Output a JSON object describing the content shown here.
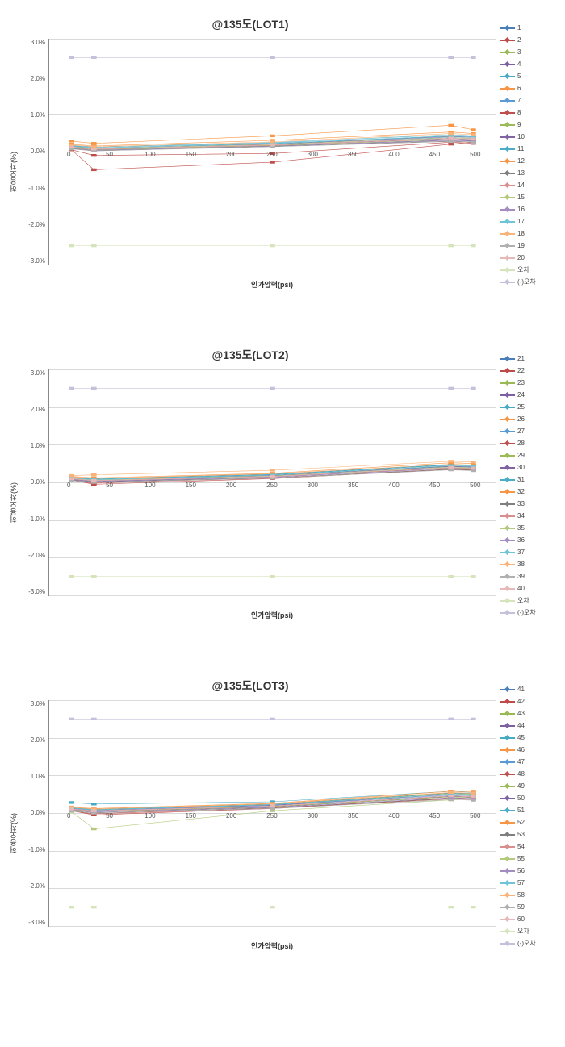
{
  "background_color": "#ffffff",
  "grid_color": "#d9d9d9",
  "axis_color": "#888888",
  "text_color": "#333333",
  "font_family": "Arial",
  "title_fontsize": 14,
  "label_fontsize": 9,
  "tick_fontsize": 8,
  "legend_fontsize": 8,
  "charts": [
    {
      "title": "@135도(LOT1)",
      "ylabel": "허용오차(%)",
      "xlabel": "인가압력(psi)",
      "ylim": [
        -3.0,
        3.0
      ],
      "ytick_step": 1.0,
      "yticks": [
        "3.0%",
        "2.0%",
        "1.0%",
        "0.0%",
        "-1.0%",
        "-2.0%",
        "-3.0%"
      ],
      "xlim": [
        0,
        500
      ],
      "xtick_step": 50,
      "xticks": [
        "0",
        "50",
        "100",
        "150",
        "200",
        "250",
        "300",
        "350",
        "400",
        "450",
        "500"
      ],
      "x_values": [
        25,
        50,
        250,
        450,
        475
      ],
      "series": [
        {
          "label": "1",
          "color": "#4a7ebb",
          "marker": "diamond",
          "values": [
            0.1,
            0.05,
            0.18,
            0.35,
            0.32
          ]
        },
        {
          "label": "2",
          "color": "#be4b48",
          "marker": "square",
          "values": [
            0.05,
            -0.1,
            -0.05,
            0.25,
            0.22
          ]
        },
        {
          "label": "3",
          "color": "#98b954",
          "marker": "triangle",
          "values": [
            0.12,
            0.08,
            0.2,
            0.4,
            0.38
          ]
        },
        {
          "label": "4",
          "color": "#7d60a0",
          "marker": "x",
          "values": [
            0.08,
            0.02,
            0.15,
            0.3,
            0.28
          ]
        },
        {
          "label": "5",
          "color": "#46aac5",
          "marker": "star",
          "values": [
            0.15,
            0.1,
            0.22,
            0.42,
            0.4
          ]
        },
        {
          "label": "6",
          "color": "#f79646",
          "marker": "circle",
          "values": [
            0.28,
            0.22,
            0.42,
            0.7,
            0.58
          ]
        },
        {
          "label": "7",
          "color": "#5a9bd4",
          "marker": "plus",
          "values": [
            0.12,
            0.06,
            0.18,
            0.38,
            0.35
          ]
        },
        {
          "label": "8",
          "color": "#c0504d",
          "marker": "dash",
          "values": [
            0.05,
            -0.48,
            -0.28,
            0.2,
            0.25
          ]
        },
        {
          "label": "9",
          "color": "#9bbb59",
          "marker": "dash",
          "values": [
            0.1,
            0.05,
            0.16,
            0.32,
            0.3
          ]
        },
        {
          "label": "10",
          "color": "#8064a2",
          "marker": "diamond",
          "values": [
            0.14,
            0.08,
            0.2,
            0.4,
            0.38
          ]
        },
        {
          "label": "11",
          "color": "#4bacc6",
          "marker": "square",
          "values": [
            0.16,
            0.12,
            0.24,
            0.45,
            0.42
          ]
        },
        {
          "label": "12",
          "color": "#f79646",
          "marker": "triangle",
          "values": [
            0.2,
            0.15,
            0.3,
            0.52,
            0.48
          ]
        },
        {
          "label": "13",
          "color": "#7f7f7f",
          "marker": "dash",
          "values": [
            0.08,
            0.03,
            0.14,
            0.28,
            0.26
          ]
        },
        {
          "label": "14",
          "color": "#d98d8c",
          "marker": "dash",
          "values": [
            0.11,
            0.06,
            0.17,
            0.34,
            0.32
          ]
        },
        {
          "label": "15",
          "color": "#b3ca7e",
          "marker": "dash",
          "values": [
            0.13,
            0.08,
            0.19,
            0.37,
            0.35
          ]
        },
        {
          "label": "16",
          "color": "#a28cc2",
          "marker": "dash",
          "values": [
            0.09,
            0.04,
            0.15,
            0.31,
            0.29
          ]
        },
        {
          "label": "17",
          "color": "#6fc4d8",
          "marker": "dash",
          "values": [
            0.15,
            0.1,
            0.21,
            0.41,
            0.39
          ]
        },
        {
          "label": "18",
          "color": "#f9b277",
          "marker": "dash",
          "values": [
            0.18,
            0.13,
            0.26,
            0.48,
            0.45
          ]
        },
        {
          "label": "19",
          "color": "#b0b0b0",
          "marker": "dash",
          "values": [
            0.07,
            0.02,
            0.13,
            0.27,
            0.25
          ]
        },
        {
          "label": "20",
          "color": "#e6b8b7",
          "marker": "dash",
          "values": [
            0.12,
            0.07,
            0.18,
            0.36,
            0.34
          ]
        },
        {
          "label": "오차",
          "color": "#d6e4bc",
          "marker": "triangle",
          "values": [
            -2.5,
            -2.5,
            -2.5,
            -2.5,
            -2.5
          ]
        },
        {
          "label": "(-)오차",
          "color": "#c5c1da",
          "marker": "dash",
          "values": [
            2.5,
            2.5,
            2.5,
            2.5,
            2.5
          ]
        }
      ]
    },
    {
      "title": "@135도(LOT2)",
      "ylabel": "허용오차(%)",
      "xlabel": "인가압력(psi)",
      "ylim": [
        -3.0,
        3.0
      ],
      "ytick_step": 1.0,
      "yticks": [
        "3.0%",
        "2.0%",
        "1.0%",
        "0.0%",
        "-1.0%",
        "-2.0%",
        "-3.0%"
      ],
      "xlim": [
        0,
        500
      ],
      "xtick_step": 50,
      "xticks": [
        "0",
        "50",
        "100",
        "150",
        "200",
        "250",
        "300",
        "350",
        "400",
        "450",
        "500"
      ],
      "x_values": [
        25,
        50,
        250,
        450,
        475
      ],
      "series": [
        {
          "label": "21",
          "color": "#4a7ebb",
          "marker": "diamond",
          "values": [
            0.08,
            0.04,
            0.16,
            0.42,
            0.4
          ]
        },
        {
          "label": "22",
          "color": "#be4b48",
          "marker": "square",
          "values": [
            0.06,
            -0.05,
            0.1,
            0.35,
            0.32
          ]
        },
        {
          "label": "23",
          "color": "#98b954",
          "marker": "triangle",
          "values": [
            0.1,
            0.06,
            0.18,
            0.44,
            0.42
          ]
        },
        {
          "label": "24",
          "color": "#7d60a0",
          "marker": "x",
          "values": [
            0.07,
            0.02,
            0.14,
            0.38,
            0.36
          ]
        },
        {
          "label": "25",
          "color": "#46aac5",
          "marker": "star",
          "values": [
            0.12,
            0.08,
            0.2,
            0.46,
            0.44
          ]
        },
        {
          "label": "26",
          "color": "#f79646",
          "marker": "circle",
          "values": [
            0.14,
            0.1,
            0.22,
            0.48,
            0.46
          ]
        },
        {
          "label": "27",
          "color": "#5a9bd4",
          "marker": "plus",
          "values": [
            0.1,
            0.05,
            0.17,
            0.41,
            0.39
          ]
        },
        {
          "label": "28",
          "color": "#c0504d",
          "marker": "dash",
          "values": [
            0.05,
            -0.02,
            0.12,
            0.34,
            0.32
          ]
        },
        {
          "label": "29",
          "color": "#9bbb59",
          "marker": "dash",
          "values": [
            0.09,
            0.04,
            0.15,
            0.39,
            0.37
          ]
        },
        {
          "label": "30",
          "color": "#8064a2",
          "marker": "diamond",
          "values": [
            0.11,
            0.06,
            0.18,
            0.43,
            0.41
          ]
        },
        {
          "label": "31",
          "color": "#4bacc6",
          "marker": "square",
          "values": [
            0.13,
            0.09,
            0.21,
            0.47,
            0.45
          ]
        },
        {
          "label": "32",
          "color": "#f79646",
          "marker": "triangle",
          "values": [
            0.16,
            0.12,
            0.24,
            0.52,
            0.5
          ]
        },
        {
          "label": "33",
          "color": "#7f7f7f",
          "marker": "dash",
          "values": [
            0.06,
            0.01,
            0.12,
            0.35,
            0.33
          ]
        },
        {
          "label": "34",
          "color": "#d98d8c",
          "marker": "dash",
          "values": [
            0.09,
            0.04,
            0.15,
            0.38,
            0.36
          ]
        },
        {
          "label": "35",
          "color": "#b3ca7e",
          "marker": "dash",
          "values": [
            0.11,
            0.06,
            0.17,
            0.41,
            0.39
          ]
        },
        {
          "label": "36",
          "color": "#a28cc2",
          "marker": "dash",
          "values": [
            0.08,
            0.03,
            0.14,
            0.37,
            0.35
          ]
        },
        {
          "label": "37",
          "color": "#6fc4d8",
          "marker": "dash",
          "values": [
            0.12,
            0.07,
            0.19,
            0.44,
            0.42
          ]
        },
        {
          "label": "38",
          "color": "#f9b277",
          "marker": "dash",
          "values": [
            0.18,
            0.2,
            0.32,
            0.56,
            0.54
          ]
        },
        {
          "label": "39",
          "color": "#b0b0b0",
          "marker": "dash",
          "values": [
            0.05,
            0.0,
            0.11,
            0.33,
            0.31
          ]
        },
        {
          "label": "40",
          "color": "#e6b8b7",
          "marker": "dash",
          "values": [
            0.1,
            0.05,
            0.16,
            0.4,
            0.38
          ]
        },
        {
          "label": "오차",
          "color": "#d6e4bc",
          "marker": "triangle",
          "values": [
            -2.5,
            -2.5,
            -2.5,
            -2.5,
            -2.5
          ]
        },
        {
          "label": "(-)오차",
          "color": "#c5c1da",
          "marker": "dash",
          "values": [
            2.5,
            2.5,
            2.5,
            2.5,
            2.5
          ]
        }
      ]
    },
    {
      "title": "@135도(LOT3)",
      "ylabel": "허용오차(%)",
      "xlabel": "인가압력(psi)",
      "ylim": [
        -3.0,
        3.0
      ],
      "ytick_step": 1.0,
      "yticks": [
        "3.0%",
        "2.0%",
        "1.0%",
        "0.0%",
        "-1.0%",
        "-2.0%",
        "-3.0%"
      ],
      "xlim": [
        0,
        500
      ],
      "xtick_step": 50,
      "xticks": [
        "0",
        "50",
        "100",
        "150",
        "200",
        "250",
        "300",
        "350",
        "400",
        "450",
        "500"
      ],
      "x_values": [
        25,
        50,
        250,
        450,
        475
      ],
      "series": [
        {
          "label": "41",
          "color": "#4a7ebb",
          "marker": "diamond",
          "values": [
            0.1,
            0.06,
            0.2,
            0.5,
            0.48
          ]
        },
        {
          "label": "42",
          "color": "#be4b48",
          "marker": "square",
          "values": [
            0.06,
            -0.05,
            0.12,
            0.4,
            0.38
          ]
        },
        {
          "label": "43",
          "color": "#98b954",
          "marker": "triangle",
          "values": [
            0.12,
            0.08,
            0.22,
            0.52,
            0.5
          ]
        },
        {
          "label": "44",
          "color": "#7d60a0",
          "marker": "x",
          "values": [
            0.08,
            0.03,
            0.16,
            0.44,
            0.42
          ]
        },
        {
          "label": "45",
          "color": "#46aac5",
          "marker": "star",
          "values": [
            0.28,
            0.24,
            0.3,
            0.58,
            0.55
          ]
        },
        {
          "label": "46",
          "color": "#f79646",
          "marker": "circle",
          "values": [
            0.14,
            0.1,
            0.24,
            0.54,
            0.52
          ]
        },
        {
          "label": "47",
          "color": "#5a9bd4",
          "marker": "plus",
          "values": [
            0.11,
            0.06,
            0.19,
            0.47,
            0.45
          ]
        },
        {
          "label": "48",
          "color": "#c0504d",
          "marker": "dash",
          "values": [
            0.05,
            -0.02,
            0.13,
            0.38,
            0.36
          ]
        },
        {
          "label": "49",
          "color": "#9bbb59",
          "marker": "dash",
          "values": [
            0.09,
            0.04,
            0.17,
            0.43,
            0.41
          ]
        },
        {
          "label": "50",
          "color": "#8064a2",
          "marker": "diamond",
          "values": [
            0.12,
            0.07,
            0.21,
            0.49,
            0.47
          ]
        },
        {
          "label": "51",
          "color": "#4bacc6",
          "marker": "square",
          "values": [
            0.14,
            0.09,
            0.23,
            0.53,
            0.51
          ]
        },
        {
          "label": "52",
          "color": "#f79646",
          "marker": "triangle",
          "values": [
            0.16,
            0.12,
            0.26,
            0.58,
            0.56
          ]
        },
        {
          "label": "53",
          "color": "#7f7f7f",
          "marker": "dash",
          "values": [
            0.06,
            0.01,
            0.14,
            0.39,
            0.37
          ]
        },
        {
          "label": "54",
          "color": "#d98d8c",
          "marker": "dash",
          "values": [
            0.1,
            0.05,
            0.18,
            0.45,
            0.43
          ]
        },
        {
          "label": "55",
          "color": "#b3ca7e",
          "marker": "dash",
          "values": [
            0.04,
            -0.42,
            0.06,
            0.35,
            0.4
          ]
        },
        {
          "label": "56",
          "color": "#a28cc2",
          "marker": "dash",
          "values": [
            0.08,
            0.03,
            0.15,
            0.41,
            0.39
          ]
        },
        {
          "label": "57",
          "color": "#6fc4d8",
          "marker": "dash",
          "values": [
            0.13,
            0.08,
            0.22,
            0.5,
            0.48
          ]
        },
        {
          "label": "58",
          "color": "#f9b277",
          "marker": "dash",
          "values": [
            0.15,
            0.11,
            0.25,
            0.55,
            0.53
          ]
        },
        {
          "label": "59",
          "color": "#b0b0b0",
          "marker": "dash",
          "values": [
            0.05,
            0.0,
            0.12,
            0.36,
            0.34
          ]
        },
        {
          "label": "60",
          "color": "#e6b8b7",
          "marker": "dash",
          "values": [
            0.11,
            0.06,
            0.19,
            0.46,
            0.44
          ]
        },
        {
          "label": "오차",
          "color": "#d6e4bc",
          "marker": "triangle",
          "values": [
            -2.5,
            -2.5,
            -2.5,
            -2.5,
            -2.5
          ]
        },
        {
          "label": "(-)오차",
          "color": "#c5c1da",
          "marker": "dash",
          "values": [
            2.5,
            2.5,
            2.5,
            2.5,
            2.5
          ]
        }
      ]
    }
  ]
}
